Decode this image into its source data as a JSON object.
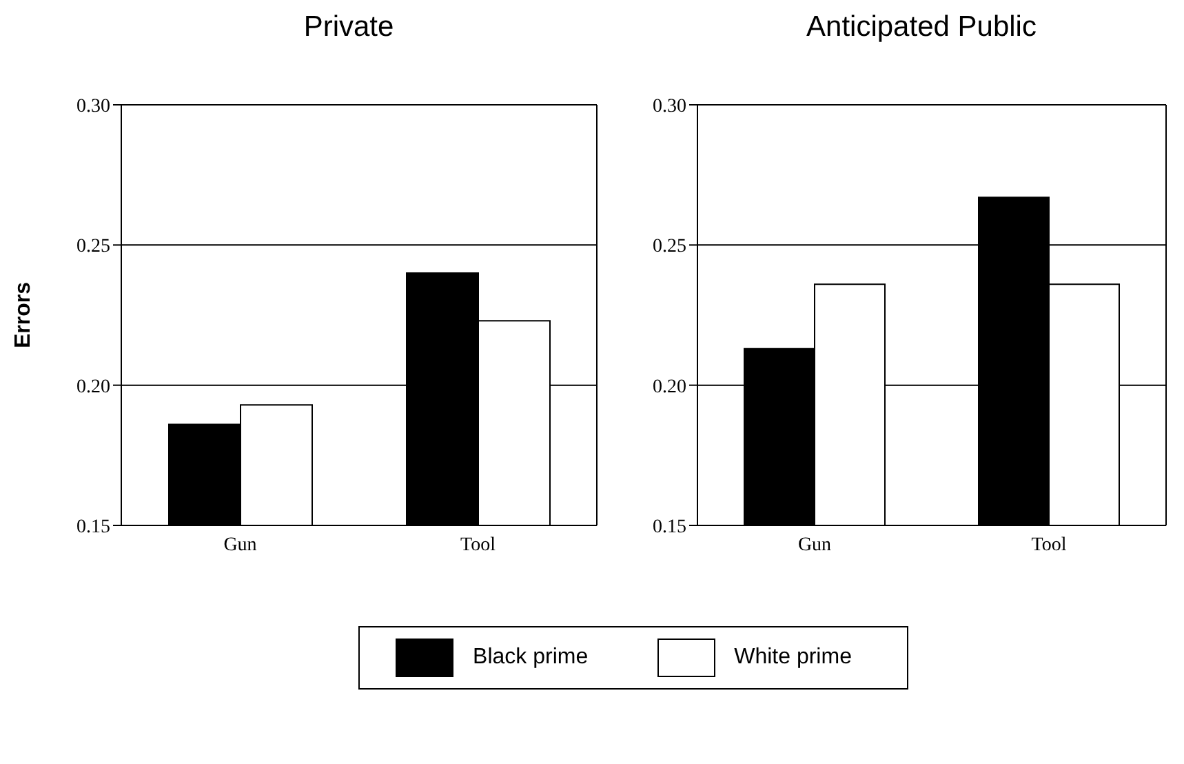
{
  "chart_data": [
    {
      "type": "bar",
      "title": "Private",
      "ylabel": "Errors",
      "categories": [
        "Gun",
        "Tool"
      ],
      "series": [
        {
          "name": "Black prime",
          "color": "#000000",
          "values": [
            0.186,
            0.24
          ]
        },
        {
          "name": "White prime",
          "color": "#ffffff",
          "values": [
            0.193,
            0.223
          ]
        }
      ],
      "ylim": [
        0.15,
        0.3
      ],
      "yticks": [
        {
          "value": 0.15,
          "label": "0.15"
        },
        {
          "value": 0.2,
          "label": "0.20"
        },
        {
          "value": 0.25,
          "label": "0.25"
        },
        {
          "value": 0.3,
          "label": "0.30"
        }
      ],
      "grid": "y",
      "legend": "bottom"
    },
    {
      "type": "bar",
      "title": "Anticipated Public",
      "categories": [
        "Gun",
        "Tool"
      ],
      "series": [
        {
          "color": "#000000",
          "values": [
            0.213,
            0.267
          ]
        },
        {
          "color": "#ffffff",
          "values": [
            0.236,
            0.236
          ]
        }
      ],
      "ylim": [
        0.15,
        0.3
      ],
      "yticks": [
        {
          "value": 0.15,
          "label": "0.15"
        },
        {
          "value": 0.2,
          "label": "0.20"
        },
        {
          "value": 0.25,
          "label": "0.25"
        },
        {
          "value": 0.3,
          "label": "0.30"
        }
      ],
      "grid": "y"
    }
  ]
}
